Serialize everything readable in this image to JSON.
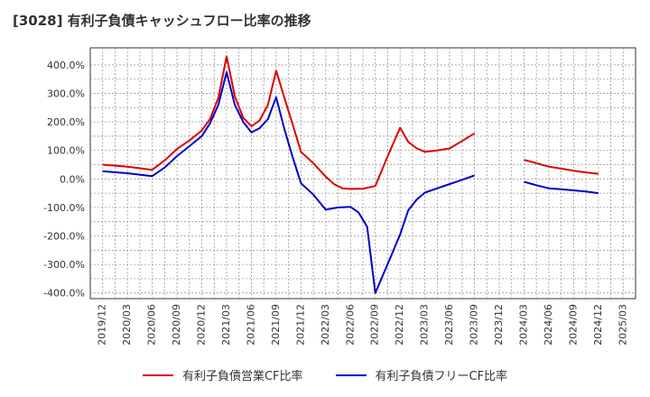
{
  "title": "[3028]  有利子負債キャッシュフロー比率の推移",
  "chart_data": {
    "type": "line",
    "ylim": [
      -420,
      460
    ],
    "y_ticks": [
      400,
      300,
      200,
      100,
      0,
      -100,
      -200,
      -300,
      -400
    ],
    "y_tick_labels": [
      "400.0%",
      "300.0%",
      "200.0%",
      "100.0%",
      "0.0%",
      "-100.0%",
      "-200.0%",
      "-300.0%",
      "-400.0%"
    ],
    "x_tick_labels": [
      "2019/12",
      "2020/03",
      "2020/06",
      "2020/09",
      "2020/12",
      "2021/03",
      "2021/06",
      "2021/09",
      "2021/12",
      "2022/03",
      "2022/06",
      "2022/09",
      "2022/12",
      "2023/03",
      "2023/06",
      "2023/09",
      "2023/12",
      "2024/03",
      "2024/06",
      "2024/09",
      "2024/12",
      "2025/03"
    ],
    "grid": true,
    "legend_position": "bottom",
    "series": [
      {
        "name": "有利子負債営業CF比率",
        "color": "#dd0000",
        "points": [
          [
            0,
            50
          ],
          [
            1,
            43
          ],
          [
            2,
            32
          ],
          [
            2.5,
            65
          ],
          [
            3,
            105
          ],
          [
            3.5,
            135
          ],
          [
            4,
            170
          ],
          [
            4.33,
            210
          ],
          [
            4.67,
            285
          ],
          [
            5,
            430
          ],
          [
            5.33,
            290
          ],
          [
            5.67,
            215
          ],
          [
            6,
            185
          ],
          [
            6.33,
            205
          ],
          [
            6.67,
            260
          ],
          [
            7,
            380
          ],
          [
            7.33,
            285
          ],
          [
            7.67,
            190
          ],
          [
            8,
            95
          ],
          [
            8.5,
            55
          ],
          [
            9,
            8
          ],
          [
            9.33,
            -18
          ],
          [
            9.67,
            -33
          ],
          [
            10,
            -35
          ],
          [
            10.5,
            -34
          ],
          [
            11,
            -25
          ],
          [
            11.5,
            80
          ],
          [
            12,
            180
          ],
          [
            12.33,
            130
          ],
          [
            12.67,
            107
          ],
          [
            13,
            95
          ],
          [
            13.5,
            100
          ],
          [
            14,
            107
          ],
          [
            14.5,
            133
          ],
          [
            15,
            160
          ],
          null,
          [
            17,
            67
          ],
          [
            17.5,
            55
          ],
          [
            18,
            43
          ],
          [
            18.5,
            36
          ],
          [
            19,
            29
          ],
          [
            19.5,
            23
          ],
          [
            20,
            18
          ]
        ]
      },
      {
        "name": "有利子負債フリーCF比率",
        "color": "#0000cc",
        "points": [
          [
            0,
            27
          ],
          [
            1,
            20
          ],
          [
            2,
            10
          ],
          [
            2.5,
            40
          ],
          [
            3,
            80
          ],
          [
            3.5,
            115
          ],
          [
            4,
            150
          ],
          [
            4.33,
            195
          ],
          [
            4.67,
            260
          ],
          [
            5,
            375
          ],
          [
            5.33,
            260
          ],
          [
            5.67,
            200
          ],
          [
            6,
            163
          ],
          [
            6.33,
            178
          ],
          [
            6.67,
            210
          ],
          [
            7,
            287
          ],
          [
            7.33,
            175
          ],
          [
            7.67,
            75
          ],
          [
            8,
            -15
          ],
          [
            8.5,
            -55
          ],
          [
            9,
            -108
          ],
          [
            9.5,
            -100
          ],
          [
            10,
            -98
          ],
          [
            10.33,
            -118
          ],
          [
            10.67,
            -168
          ],
          [
            11,
            -400
          ],
          [
            11.5,
            -298
          ],
          [
            12,
            -195
          ],
          [
            12.33,
            -110
          ],
          [
            12.67,
            -72
          ],
          [
            13,
            -48
          ],
          [
            13.5,
            -33
          ],
          [
            14,
            -18
          ],
          [
            14.5,
            -3
          ],
          [
            15,
            12
          ],
          null,
          [
            17,
            -10
          ],
          [
            17.5,
            -22
          ],
          [
            18,
            -33
          ],
          [
            18.5,
            -36
          ],
          [
            19,
            -40
          ],
          [
            19.5,
            -44
          ],
          [
            20,
            -50
          ]
        ]
      }
    ]
  }
}
